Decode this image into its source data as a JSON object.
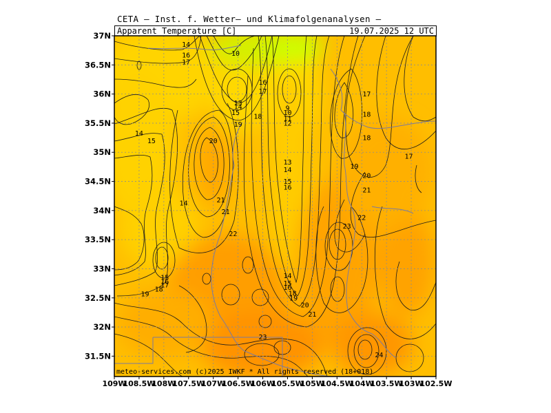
{
  "header": {
    "title": "CETA — Inst. f. Wetter— und Klimafolgenanalysen —",
    "product": "Apparent Temperature [C]",
    "datetime": "19.07.2025 12 UTC"
  },
  "map": {
    "lat_range": [
      31.15,
      37.0
    ],
    "lon_range": [
      -109.0,
      -102.5
    ],
    "lat_ticks": [
      {
        "value": 37.0,
        "label": "37N"
      },
      {
        "value": 36.5,
        "label": "36.5N"
      },
      {
        "value": 36.0,
        "label": "36N"
      },
      {
        "value": 35.5,
        "label": "35.5N"
      },
      {
        "value": 35.0,
        "label": "35N"
      },
      {
        "value": 34.5,
        "label": "34.5N"
      },
      {
        "value": 34.0,
        "label": "34N"
      },
      {
        "value": 33.5,
        "label": "33.5N"
      },
      {
        "value": 33.0,
        "label": "33N"
      },
      {
        "value": 32.5,
        "label": "32.5N"
      },
      {
        "value": 32.0,
        "label": "32N"
      },
      {
        "value": 31.5,
        "label": "31.5N"
      }
    ],
    "lon_ticks": [
      {
        "value": -109.0,
        "label": "109W"
      },
      {
        "value": -108.5,
        "label": "108.5W"
      },
      {
        "value": -108.0,
        "label": "108W"
      },
      {
        "value": -107.5,
        "label": "107.5W"
      },
      {
        "value": -107.0,
        "label": "107W"
      },
      {
        "value": -106.5,
        "label": "106.5W"
      },
      {
        "value": -106.0,
        "label": "106W"
      },
      {
        "value": -105.5,
        "label": "105.5W"
      },
      {
        "value": -105.0,
        "label": "105W"
      },
      {
        "value": -104.5,
        "label": "104.5W"
      },
      {
        "value": -104.0,
        "label": "104W"
      },
      {
        "value": -103.5,
        "label": "103.5W"
      },
      {
        "value": -103.0,
        "label": "103W"
      },
      {
        "value": -102.5,
        "label": "102.5W"
      }
    ],
    "grid": "dotted",
    "contour_labels": [
      {
        "text": "14",
        "lon": -107.55,
        "lat": 36.85
      },
      {
        "text": "16",
        "lon": -107.55,
        "lat": 36.67
      },
      {
        "text": "17",
        "lon": -107.55,
        "lat": 36.55
      },
      {
        "text": "10",
        "lon": -106.55,
        "lat": 36.7
      },
      {
        "text": "16",
        "lon": -106.0,
        "lat": 36.2
      },
      {
        "text": "17",
        "lon": -106.0,
        "lat": 36.05
      },
      {
        "text": "13",
        "lon": -106.5,
        "lat": 35.85
      },
      {
        "text": "14",
        "lon": -106.5,
        "lat": 35.78
      },
      {
        "text": "15",
        "lon": -106.55,
        "lat": 35.68
      },
      {
        "text": "18",
        "lon": -106.1,
        "lat": 35.62
      },
      {
        "text": "19",
        "lon": -106.5,
        "lat": 35.48
      },
      {
        "text": "9",
        "lon": -105.5,
        "lat": 35.76
      },
      {
        "text": "10",
        "lon": -105.5,
        "lat": 35.68
      },
      {
        "text": "11",
        "lon": -105.5,
        "lat": 35.58
      },
      {
        "text": "12",
        "lon": -105.5,
        "lat": 35.5
      },
      {
        "text": "17",
        "lon": -103.9,
        "lat": 36.0
      },
      {
        "text": "18",
        "lon": -103.9,
        "lat": 35.65
      },
      {
        "text": "18",
        "lon": -103.9,
        "lat": 35.25
      },
      {
        "text": "14",
        "lon": -108.5,
        "lat": 35.33
      },
      {
        "text": "15",
        "lon": -108.25,
        "lat": 35.2
      },
      {
        "text": "20",
        "lon": -107.0,
        "lat": 35.2
      },
      {
        "text": "13",
        "lon": -105.5,
        "lat": 34.83
      },
      {
        "text": "14",
        "lon": -105.5,
        "lat": 34.7
      },
      {
        "text": "15",
        "lon": -105.5,
        "lat": 34.5
      },
      {
        "text": "16",
        "lon": -105.5,
        "lat": 34.4
      },
      {
        "text": "19",
        "lon": -104.15,
        "lat": 34.76
      },
      {
        "text": "20",
        "lon": -103.9,
        "lat": 34.6
      },
      {
        "text": "21",
        "lon": -103.9,
        "lat": 34.35
      },
      {
        "text": "17",
        "lon": -103.05,
        "lat": 34.93
      },
      {
        "text": "14",
        "lon": -107.6,
        "lat": 34.13
      },
      {
        "text": "21",
        "lon": -106.85,
        "lat": 34.18
      },
      {
        "text": "21",
        "lon": -106.75,
        "lat": 33.98
      },
      {
        "text": "22",
        "lon": -106.6,
        "lat": 33.6
      },
      {
        "text": "22",
        "lon": -104.0,
        "lat": 33.88
      },
      {
        "text": "23",
        "lon": -104.3,
        "lat": 33.73
      },
      {
        "text": "14",
        "lon": -105.5,
        "lat": 32.88
      },
      {
        "text": "15",
        "lon": -105.5,
        "lat": 32.75
      },
      {
        "text": "16",
        "lon": -105.5,
        "lat": 32.68
      },
      {
        "text": "18",
        "lon": -105.4,
        "lat": 32.58
      },
      {
        "text": "19",
        "lon": -105.38,
        "lat": 32.5
      },
      {
        "text": "20",
        "lon": -105.15,
        "lat": 32.38
      },
      {
        "text": "21",
        "lon": -105.0,
        "lat": 32.22
      },
      {
        "text": "15",
        "lon": -107.98,
        "lat": 32.85
      },
      {
        "text": "16",
        "lon": -107.98,
        "lat": 32.78
      },
      {
        "text": "17",
        "lon": -107.98,
        "lat": 32.72
      },
      {
        "text": "18",
        "lon": -108.1,
        "lat": 32.65
      },
      {
        "text": "19",
        "lon": -108.38,
        "lat": 32.57
      },
      {
        "text": "23",
        "lon": -106.0,
        "lat": 31.83
      },
      {
        "text": "24",
        "lon": -103.65,
        "lat": 31.52
      }
    ],
    "copyright": "meteo-services.com (c)2025 IWKF * All rights reserved (18+018)"
  },
  "colors": {
    "yellow_green": "#ccff00",
    "yellow": "#ffd700",
    "orange_yellow": "#ffbf00",
    "orange": "#ffa500",
    "dark_orange": "#ff9400",
    "contour": "#1a1a1a",
    "border": "#7a7aa0"
  }
}
